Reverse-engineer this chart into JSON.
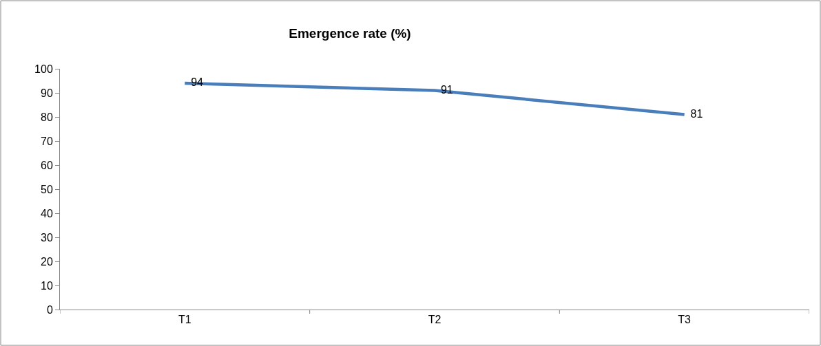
{
  "chart_data": {
    "type": "line",
    "title": "Emergence rate (%)",
    "categories": [
      "T1",
      "T2",
      "T3"
    ],
    "series": [
      {
        "color": "#4a7ebb",
        "values": [
          94,
          91,
          81
        ]
      }
    ],
    "ylim": [
      0,
      100
    ],
    "yticks": [
      0,
      10,
      20,
      30,
      40,
      50,
      60,
      70,
      80,
      90,
      100
    ],
    "data_labels": true,
    "marker": "none",
    "line_style": "solid"
  }
}
